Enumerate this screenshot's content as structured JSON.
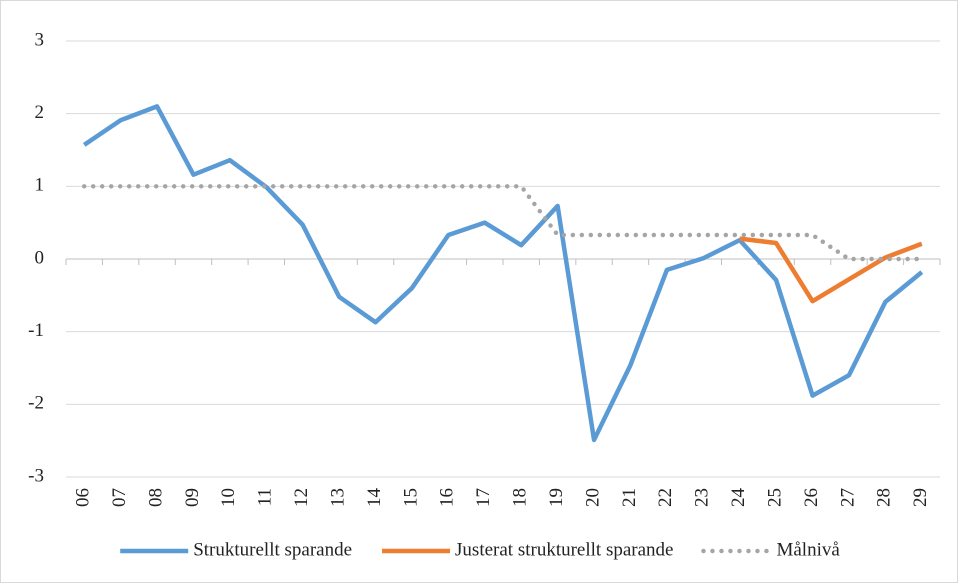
{
  "chart_data": {
    "type": "line",
    "categories": [
      "06",
      "07",
      "08",
      "09",
      "10",
      "11",
      "12",
      "13",
      "14",
      "15",
      "16",
      "17",
      "18",
      "19",
      "20",
      "21",
      "22",
      "23",
      "24",
      "25",
      "26",
      "27",
      "28",
      "29"
    ],
    "series": [
      {
        "name": "Strukturellt sparande",
        "color": "#5b9bd5",
        "style": "solid",
        "values": [
          1.57,
          1.91,
          2.1,
          1.16,
          1.36,
          0.99,
          0.47,
          -0.52,
          -0.87,
          -0.4,
          0.33,
          0.5,
          0.19,
          0.73,
          -2.49,
          -1.46,
          -0.15,
          0.01,
          0.26,
          -0.29,
          -1.88,
          -1.6,
          -0.59,
          -0.18
        ]
      },
      {
        "name": "Justerat strukturellt sparande",
        "color": "#ed7d31",
        "style": "solid",
        "values": [
          null,
          null,
          null,
          null,
          null,
          null,
          null,
          null,
          null,
          null,
          null,
          null,
          null,
          null,
          null,
          null,
          null,
          null,
          0.28,
          0.22,
          -0.58,
          -0.28,
          0.02,
          0.21
        ]
      },
      {
        "name": "Målnivå",
        "color": "#a5a5a5",
        "style": "dotted",
        "values": [
          1,
          1,
          1,
          1,
          1,
          1,
          1,
          1,
          1,
          1,
          1,
          1,
          1,
          0.33,
          0.33,
          0.33,
          0.33,
          0.33,
          0.33,
          0.33,
          0.33,
          0,
          0,
          0
        ]
      }
    ],
    "ylim": [
      -3,
      3
    ],
    "yticks": [
      -3,
      -2,
      -1,
      0,
      1,
      2,
      3
    ],
    "grid": true,
    "legend": "bottom"
  }
}
